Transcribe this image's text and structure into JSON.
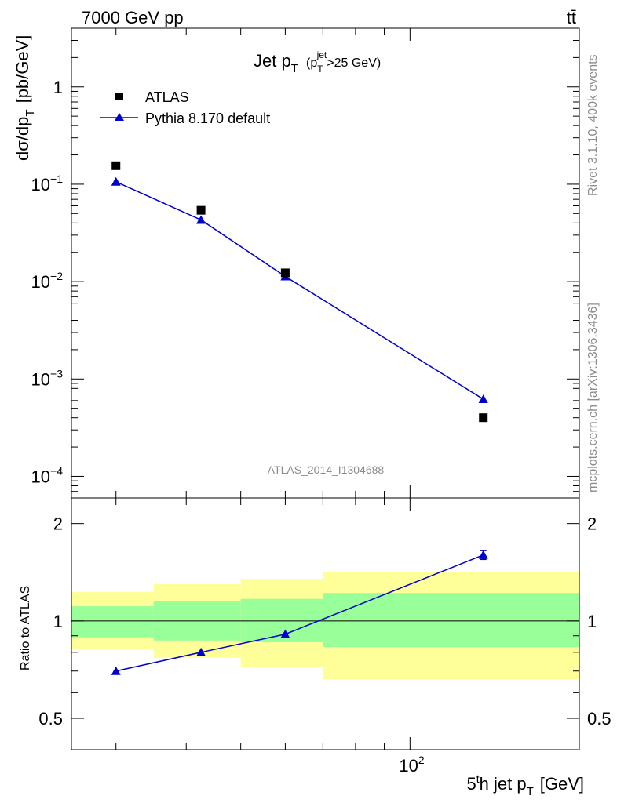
{
  "header": {
    "energy_label": "7000 GeV pp",
    "process_label": "tt̄"
  },
  "plot": {
    "title_main": "Jet p",
    "title_main_sub": "T",
    "title_cut_open": "(p",
    "title_cut_sub": "T",
    "title_cut_sup": "jet",
    "title_cut_close": ">25 GeV)",
    "analysis_id": "ATLAS_2014_I1304688",
    "side_text_top": "Rivet 3.1.10,  400k events",
    "side_text_bottom": "mcplots.cern.ch [arXiv:1306.3436]"
  },
  "legend": {
    "data_label": "ATLAS",
    "mc_label": "Pythia 8.170 default"
  },
  "axes": {
    "ylabel_main": "dσ/dp",
    "ylabel_main_sub": "T",
    "ylabel_main_units": "[pb/GeV]",
    "ylabel_ratio": "Ratio to ATLAS",
    "xlabel_pre": "5",
    "xlabel_sup": "t",
    "xlabel_mid": "h jet p",
    "xlabel_sub": "T",
    "xlabel_units": "[GeV]",
    "x_tick_label": "10",
    "x_tick_exp": "2"
  },
  "colors": {
    "data": "#000000",
    "mc": "#0000cc",
    "band_inner": "#99ff99",
    "band_outer": "#ffff99",
    "side_text": "#8c8c8c"
  },
  "chart_data": [
    {
      "type": "scatter",
      "panel": "main",
      "title": "Jet pT (pT jet > 25 GeV)",
      "x_scale": "log",
      "y_scale": "log",
      "xlim": [
        25,
        200
      ],
      "ylim": [
        6e-05,
        4
      ],
      "x_bins": [
        [
          25,
          35
        ],
        [
          35,
          50
        ],
        [
          50,
          70
        ],
        [
          70,
          200
        ]
      ],
      "series": [
        {
          "name": "ATLAS",
          "marker": "square",
          "x": [
            30,
            42.5,
            60,
            135
          ],
          "y": [
            0.155,
            0.054,
            0.0123,
            0.0004
          ]
        },
        {
          "name": "Pythia 8.170 default",
          "marker": "triangle",
          "x": [
            30,
            42.5,
            60,
            135
          ],
          "y": [
            0.106,
            0.043,
            0.0113,
            0.00062
          ]
        }
      ],
      "y_ticks": [
        {
          "base": "10",
          "exp": "−4",
          "value": 0.0001
        },
        {
          "base": "10",
          "exp": "−3",
          "value": 0.001
        },
        {
          "base": "10",
          "exp": "−2",
          "value": 0.01
        },
        {
          "base": "10",
          "exp": "−1",
          "value": 0.1
        },
        {
          "base": "1",
          "exp": "",
          "value": 1
        }
      ]
    },
    {
      "type": "line",
      "panel": "ratio",
      "x_scale": "log",
      "y_scale": "log",
      "xlim": [
        25,
        200
      ],
      "ylim": [
        0.4,
        2.4
      ],
      "y_tick_labels": [
        {
          "label": "0.5",
          "value": 0.5
        },
        {
          "label": "1",
          "value": 1
        },
        {
          "label": "2",
          "value": 2
        }
      ],
      "bands": {
        "x_bins": [
          [
            25,
            35
          ],
          [
            35,
            50
          ],
          [
            50,
            70
          ],
          [
            70,
            200
          ]
        ],
        "inner_low": [
          0.89,
          0.87,
          0.86,
          0.83
        ],
        "inner_high": [
          1.11,
          1.15,
          1.17,
          1.22
        ],
        "outer_low": [
          0.82,
          0.77,
          0.72,
          0.66
        ],
        "outer_high": [
          1.23,
          1.3,
          1.35,
          1.42
        ]
      },
      "series": [
        {
          "name": "Pythia 8.170 default",
          "x": [
            30,
            42.5,
            60,
            135
          ],
          "y": [
            0.7,
            0.8,
            0.91,
            1.6
          ],
          "yerr": [
            0.005,
            0.006,
            0.008,
            0.05
          ]
        }
      ]
    }
  ]
}
